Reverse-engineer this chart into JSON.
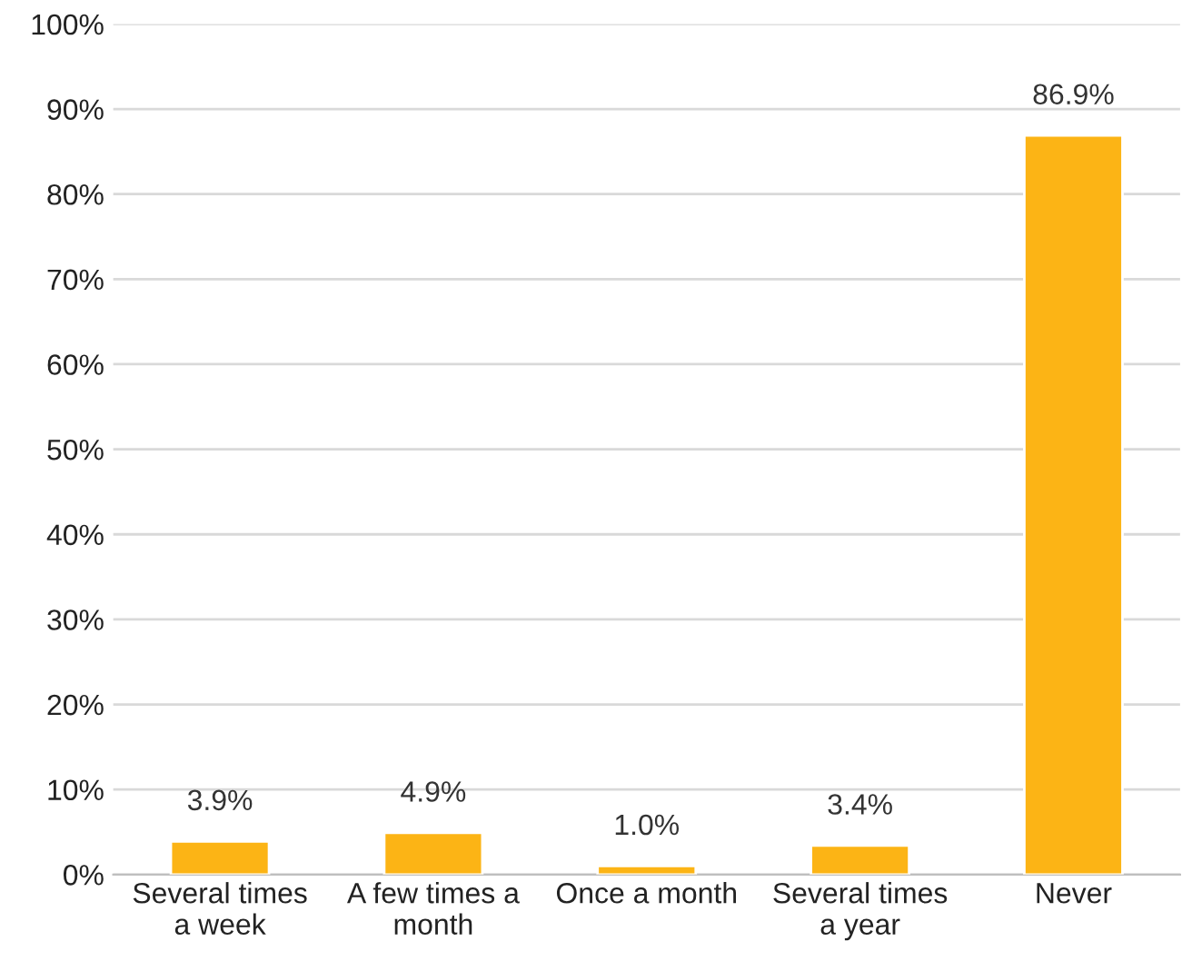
{
  "chart_data": {
    "type": "bar",
    "categories": [
      "Several times\na week",
      "A few times a\nmonth",
      "Once a month",
      "Several times\na year",
      "Never"
    ],
    "values": [
      3.9,
      4.9,
      1.0,
      3.4,
      86.9
    ],
    "value_labels": [
      "3.9%",
      "4.9%",
      "1.0%",
      "3.4%",
      "86.9%"
    ],
    "color": "#fcb415",
    "ylim": [
      0,
      100
    ],
    "yticks": [
      {
        "value": 0,
        "label": "0%"
      },
      {
        "value": 10,
        "label": "10%"
      },
      {
        "value": 20,
        "label": "20%"
      },
      {
        "value": 30,
        "label": "30%"
      },
      {
        "value": 40,
        "label": "40%"
      },
      {
        "value": 50,
        "label": "50%"
      },
      {
        "value": 60,
        "label": "60%"
      },
      {
        "value": 70,
        "label": "70%"
      },
      {
        "value": 80,
        "label": "80%"
      },
      {
        "value": 90,
        "label": "90%"
      },
      {
        "value": 100,
        "label": "100%"
      }
    ],
    "grid": "y"
  }
}
